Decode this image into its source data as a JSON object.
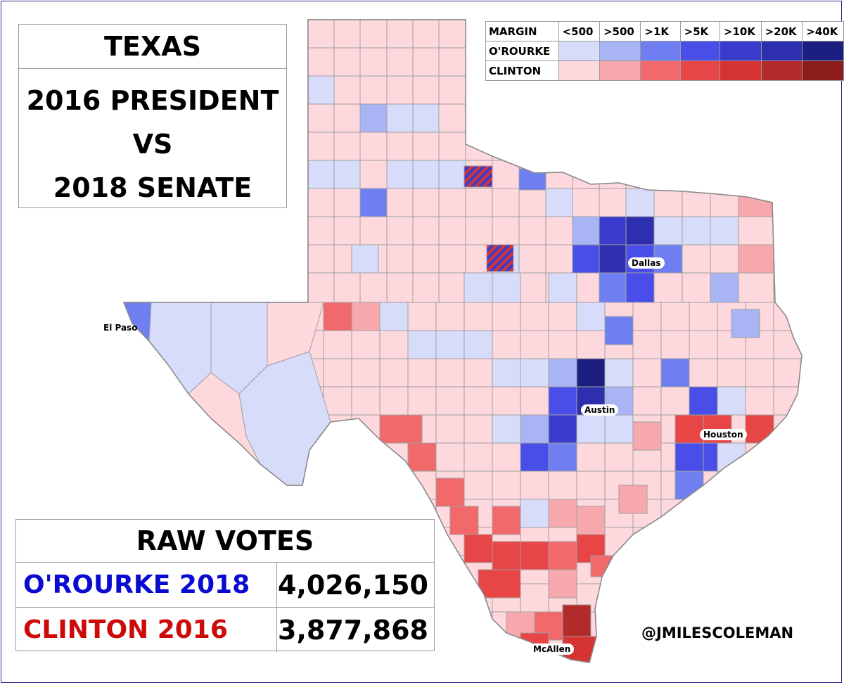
{
  "title": {
    "state": "TEXAS",
    "line1": "2016 PRESIDENT",
    "line2": "VS",
    "line3": "2018 SENATE"
  },
  "legend": {
    "header_label": "MARGIN",
    "thresholds": [
      "<500",
      ">500",
      ">1K",
      ">5K",
      ">10K",
      ">20K",
      ">40K"
    ],
    "rows": [
      {
        "label": "O'ROURKE",
        "colors": [
          "#d6dcfa",
          "#a9b4f5",
          "#6f7ff1",
          "#4a4ee8",
          "#3a3cce",
          "#2d2fae",
          "#1d1f80"
        ]
      },
      {
        "label": "CLINTON",
        "colors": [
          "#fdd8dd",
          "#f7a8ad",
          "#f1696b",
          "#e84646",
          "#d63434",
          "#b32a2a",
          "#8c1c1c"
        ]
      }
    ]
  },
  "cities": {
    "el_paso": "El Paso",
    "dallas": "Dallas",
    "austin": "Austin",
    "houston": "Houston",
    "mcallen": "McAllen"
  },
  "raw_votes": {
    "title": "RAW VOTES",
    "rows": [
      {
        "name": "O'ROURKE 2018",
        "value": "4,026,150",
        "color": "#0a0ad2"
      },
      {
        "name": "CLINTON 2016",
        "value": "3,877,868",
        "color": "#cc0a0a"
      }
    ]
  },
  "credit": "@JMILESCOLEMAN",
  "colors": {
    "state_fill": "#fdd8dd",
    "county_border": "#a0a0a0",
    "state_border": "#8a8a8a",
    "frame": "#2b2b8a"
  }
}
